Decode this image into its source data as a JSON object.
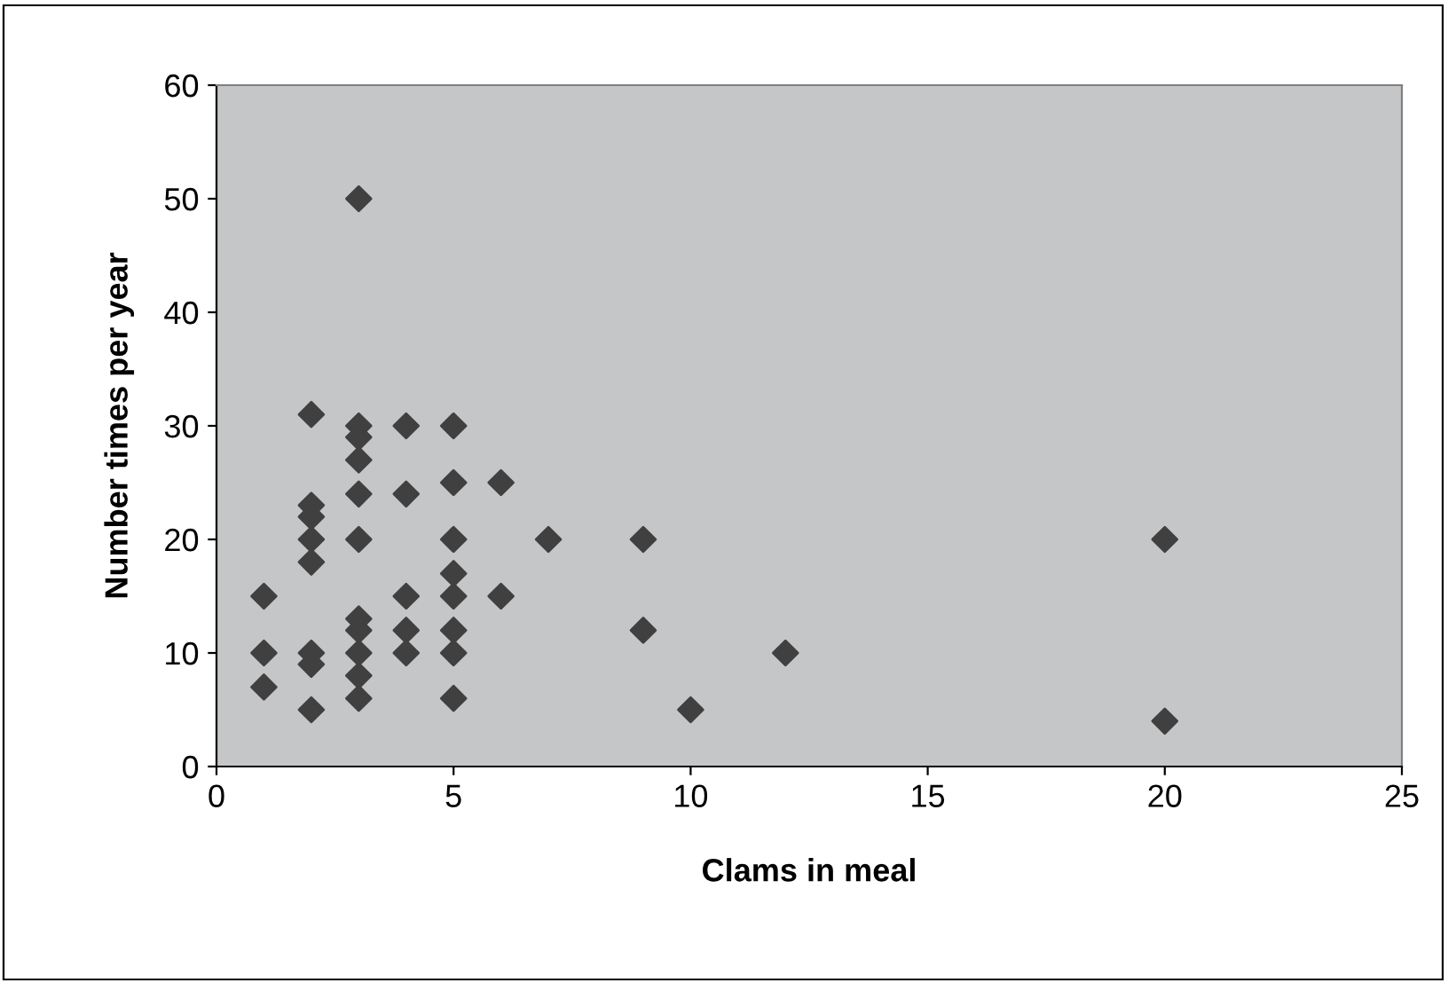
{
  "chart_data": {
    "type": "scatter",
    "xlabel": "Clams in meal",
    "ylabel": "Number times per year",
    "x": [
      1,
      1,
      1,
      2,
      2,
      2,
      2,
      2,
      2,
      2,
      2,
      3,
      3,
      3,
      3,
      3,
      3,
      3,
      3,
      3,
      3,
      3,
      4,
      4,
      4,
      4,
      4,
      5,
      5,
      5,
      5,
      5,
      5,
      5,
      5,
      6,
      6,
      7,
      9,
      9,
      10,
      12,
      20,
      20
    ],
    "series": [
      {
        "color": "#404040",
        "values": [
          15,
          10,
          7,
          31,
          23,
          22,
          20,
          18,
          10,
          9,
          5,
          50,
          30,
          29,
          27,
          24,
          20,
          13,
          12,
          10,
          8,
          6,
          30,
          24,
          15,
          12,
          10,
          30,
          25,
          20,
          17,
          15,
          12,
          10,
          6,
          25,
          15,
          20,
          20,
          12,
          5,
          10,
          20,
          4
        ]
      }
    ],
    "xlim": [
      0,
      25
    ],
    "xticks": [
      0,
      5,
      10,
      15,
      20,
      25
    ],
    "ylim": [
      0,
      60
    ],
    "yticks": [
      0,
      10,
      20,
      30,
      40,
      50,
      60
    ],
    "marker": "diamond",
    "grid": false,
    "legend": false
  }
}
